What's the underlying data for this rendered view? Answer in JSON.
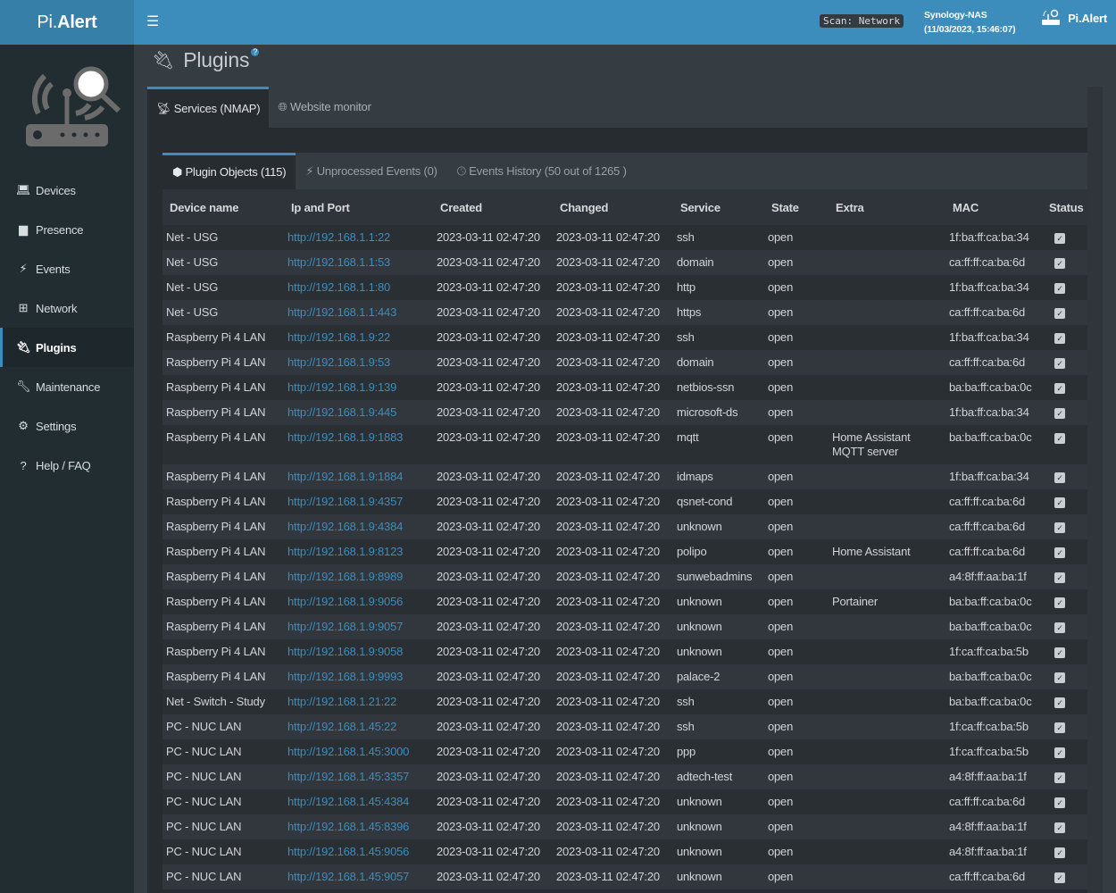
{
  "header": {
    "logo_pre": "Pi.",
    "logo_main": "Alert",
    "scan_badge": "Scan: Network",
    "host": "Synology-NAS",
    "datetime": "(11/03/2023, 15:46:07)",
    "user": "Pi.Alert",
    "accent": "#3c8dbc"
  },
  "sidebar": {
    "items": [
      {
        "label": "Devices",
        "icon": "laptop-icon"
      },
      {
        "label": "Presence",
        "icon": "calendar-icon"
      },
      {
        "label": "Events",
        "icon": "bolt-icon"
      },
      {
        "label": "Network",
        "icon": "sitemap-icon"
      },
      {
        "label": "Plugins",
        "icon": "plug-icon",
        "active": true
      },
      {
        "label": "Maintenance",
        "icon": "wrench-icon"
      },
      {
        "label": "Settings",
        "icon": "gear-icon"
      },
      {
        "label": "Help / FAQ",
        "icon": "question-icon"
      }
    ]
  },
  "page": {
    "title": "Plugins",
    "help": "?"
  },
  "plugin_tabs": [
    {
      "label": "Services (NMAP)"
    },
    {
      "label": "Website monitor"
    }
  ],
  "sub_tabs": [
    {
      "label": "Plugin Objects (115)"
    },
    {
      "label": "Unprocessed Events (0)"
    },
    {
      "label": "Events History (50 out of 1265 )"
    }
  ],
  "table": {
    "columns": [
      "Device name",
      "Ip and Port",
      "Created",
      "Changed",
      "Service",
      "State",
      "Extra",
      "MAC",
      "Status"
    ],
    "rows": [
      [
        "Net - USG",
        "http://192.168.1.1:22",
        "2023-03-11 02:47:20",
        "2023-03-11 02:47:20",
        "ssh",
        "open",
        "",
        "1f:ba:ff:ca:ba:34",
        true
      ],
      [
        "Net - USG",
        "http://192.168.1.1:53",
        "2023-03-11 02:47:20",
        "2023-03-11 02:47:20",
        "domain",
        "open",
        "",
        "ca:ff:ff:ca:ba:6d",
        true
      ],
      [
        "Net - USG",
        "http://192.168.1.1:80",
        "2023-03-11 02:47:20",
        "2023-03-11 02:47:20",
        "http",
        "open",
        "",
        "1f:ba:ff:ca:ba:34",
        true
      ],
      [
        "Net - USG",
        "http://192.168.1.1:443",
        "2023-03-11 02:47:20",
        "2023-03-11 02:47:20",
        "https",
        "open",
        "",
        "ca:ff:ff:ca:ba:6d",
        true
      ],
      [
        "Raspberry Pi 4 LAN",
        "http://192.168.1.9:22",
        "2023-03-11 02:47:20",
        "2023-03-11 02:47:20",
        "ssh",
        "open",
        "",
        "1f:ba:ff:ca:ba:34",
        true
      ],
      [
        "Raspberry Pi 4 LAN",
        "http://192.168.1.9:53",
        "2023-03-11 02:47:20",
        "2023-03-11 02:47:20",
        "domain",
        "open",
        "",
        "ca:ff:ff:ca:ba:6d",
        true
      ],
      [
        "Raspberry Pi 4 LAN",
        "http://192.168.1.9:139",
        "2023-03-11 02:47:20",
        "2023-03-11 02:47:20",
        "netbios-ssn",
        "open",
        "",
        "ba:ba:ff:ca:ba:0c",
        true
      ],
      [
        "Raspberry Pi 4 LAN",
        "http://192.168.1.9:445",
        "2023-03-11 02:47:20",
        "2023-03-11 02:47:20",
        "microsoft-ds",
        "open",
        "",
        "1f:ba:ff:ca:ba:34",
        true
      ],
      [
        "Raspberry Pi 4 LAN",
        "http://192.168.1.9:1883",
        "2023-03-11 02:47:20",
        "2023-03-11 02:47:20",
        "mqtt",
        "open",
        "Home Assistant MQTT server",
        "ba:ba:ff:ca:ba:0c",
        true
      ],
      [
        "Raspberry Pi 4 LAN",
        "http://192.168.1.9:1884",
        "2023-03-11 02:47:20",
        "2023-03-11 02:47:20",
        "idmaps",
        "open",
        "",
        "1f:ba:ff:ca:ba:34",
        true
      ],
      [
        "Raspberry Pi 4 LAN",
        "http://192.168.1.9:4357",
        "2023-03-11 02:47:20",
        "2023-03-11 02:47:20",
        "qsnet-cond",
        "open",
        "",
        "ca:ff:ff:ca:ba:6d",
        true
      ],
      [
        "Raspberry Pi 4 LAN",
        "http://192.168.1.9:4384",
        "2023-03-11 02:47:20",
        "2023-03-11 02:47:20",
        "unknown",
        "open",
        "",
        "ca:ff:ff:ca:ba:6d",
        true
      ],
      [
        "Raspberry Pi 4 LAN",
        "http://192.168.1.9:8123",
        "2023-03-11 02:47:20",
        "2023-03-11 02:47:20",
        "polipo",
        "open",
        "Home Assistant",
        "ca:ff:ff:ca:ba:6d",
        true
      ],
      [
        "Raspberry Pi 4 LAN",
        "http://192.168.1.9:8989",
        "2023-03-11 02:47:20",
        "2023-03-11 02:47:20",
        "sunwebadmins",
        "open",
        "",
        "a4:8f:ff:aa:ba:1f",
        true
      ],
      [
        "Raspberry Pi 4 LAN",
        "http://192.168.1.9:9056",
        "2023-03-11 02:47:20",
        "2023-03-11 02:47:20",
        "unknown",
        "open",
        "Portainer",
        "ba:ba:ff:ca:ba:0c",
        true
      ],
      [
        "Raspberry Pi 4 LAN",
        "http://192.168.1.9:9057",
        "2023-03-11 02:47:20",
        "2023-03-11 02:47:20",
        "unknown",
        "open",
        "",
        "ba:ba:ff:ca:ba:0c",
        true
      ],
      [
        "Raspberry Pi 4 LAN",
        "http://192.168.1.9:9058",
        "2023-03-11 02:47:20",
        "2023-03-11 02:47:20",
        "unknown",
        "open",
        "",
        "1f:ca:ff:ca:ba:5b",
        true
      ],
      [
        "Raspberry Pi 4 LAN",
        "http://192.168.1.9:9993",
        "2023-03-11 02:47:20",
        "2023-03-11 02:47:20",
        "palace-2",
        "open",
        "",
        "ba:ba:ff:ca:ba:0c",
        true
      ],
      [
        "Net - Switch - Study",
        "http://192.168.1.21:22",
        "2023-03-11 02:47:20",
        "2023-03-11 02:47:20",
        "ssh",
        "open",
        "",
        "ba:ba:ff:ca:ba:0c",
        true
      ],
      [
        "PC - NUC LAN",
        "http://192.168.1.45:22",
        "2023-03-11 02:47:20",
        "2023-03-11 02:47:20",
        "ssh",
        "open",
        "",
        "1f:ca:ff:ca:ba:5b",
        true
      ],
      [
        "PC - NUC LAN",
        "http://192.168.1.45:3000",
        "2023-03-11 02:47:20",
        "2023-03-11 02:47:20",
        "ppp",
        "open",
        "",
        "1f:ca:ff:ca:ba:5b",
        true
      ],
      [
        "PC - NUC LAN",
        "http://192.168.1.45:3357",
        "2023-03-11 02:47:20",
        "2023-03-11 02:47:20",
        "adtech-test",
        "open",
        "",
        "a4:8f:ff:aa:ba:1f",
        true
      ],
      [
        "PC - NUC LAN",
        "http://192.168.1.45:4384",
        "2023-03-11 02:47:20",
        "2023-03-11 02:47:20",
        "unknown",
        "open",
        "",
        "ca:ff:ff:ca:ba:6d",
        true
      ],
      [
        "PC - NUC LAN",
        "http://192.168.1.45:8396",
        "2023-03-11 02:47:20",
        "2023-03-11 02:47:20",
        "unknown",
        "open",
        "",
        "a4:8f:ff:aa:ba:1f",
        true
      ],
      [
        "PC - NUC LAN",
        "http://192.168.1.45:9056",
        "2023-03-11 02:47:20",
        "2023-03-11 02:47:20",
        "unknown",
        "open",
        "",
        "a4:8f:ff:aa:ba:1f",
        true
      ],
      [
        "PC - NUC LAN",
        "http://192.168.1.45:9057",
        "2023-03-11 02:47:20",
        "2023-03-11 02:47:20",
        "unknown",
        "open",
        "",
        "ca:ff:ff:ca:ba:6d",
        true
      ]
    ]
  }
}
